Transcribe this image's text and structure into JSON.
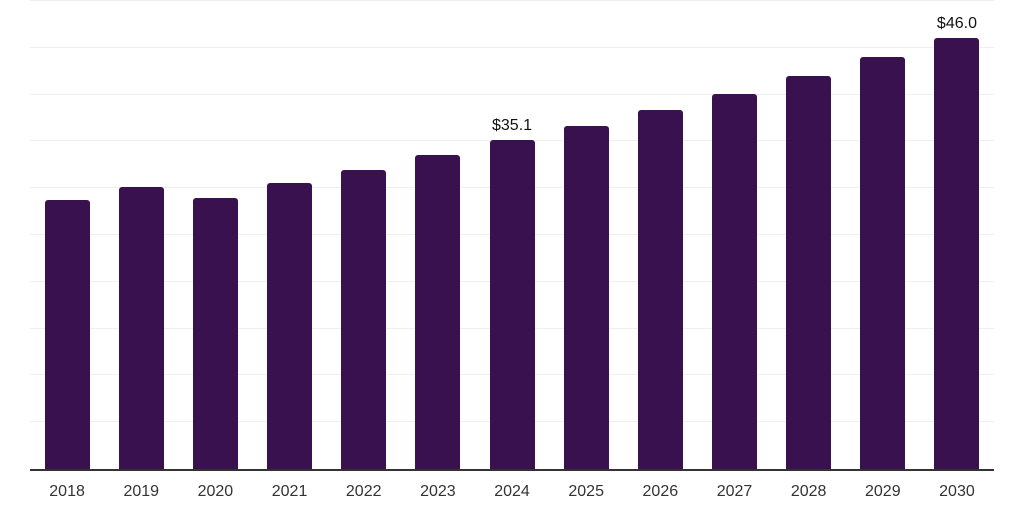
{
  "chart_data": {
    "type": "bar",
    "title": "",
    "xlabel": "",
    "ylabel": "",
    "categories": [
      "2018",
      "2019",
      "2020",
      "2021",
      "2022",
      "2023",
      "2024",
      "2025",
      "2026",
      "2027",
      "2028",
      "2029",
      "2030"
    ],
    "values": [
      28.7,
      30.1,
      29.0,
      30.6,
      31.9,
      33.6,
      35.1,
      36.7,
      38.4,
      40.1,
      42.0,
      44.0,
      46.0
    ],
    "data_labels": {
      "2024": "$35.1",
      "2030": "$46.0"
    },
    "ylim": [
      0,
      50
    ],
    "gridline_step": 5,
    "grid": true,
    "legend": "none",
    "y_axis_labels_visible": false,
    "colors": {
      "bar": "#38114E",
      "axis": "#333333",
      "gridline": "#EFEFEF",
      "data_label": "#111111",
      "tick_label": "#333333",
      "background": "#FFFFFF"
    }
  }
}
